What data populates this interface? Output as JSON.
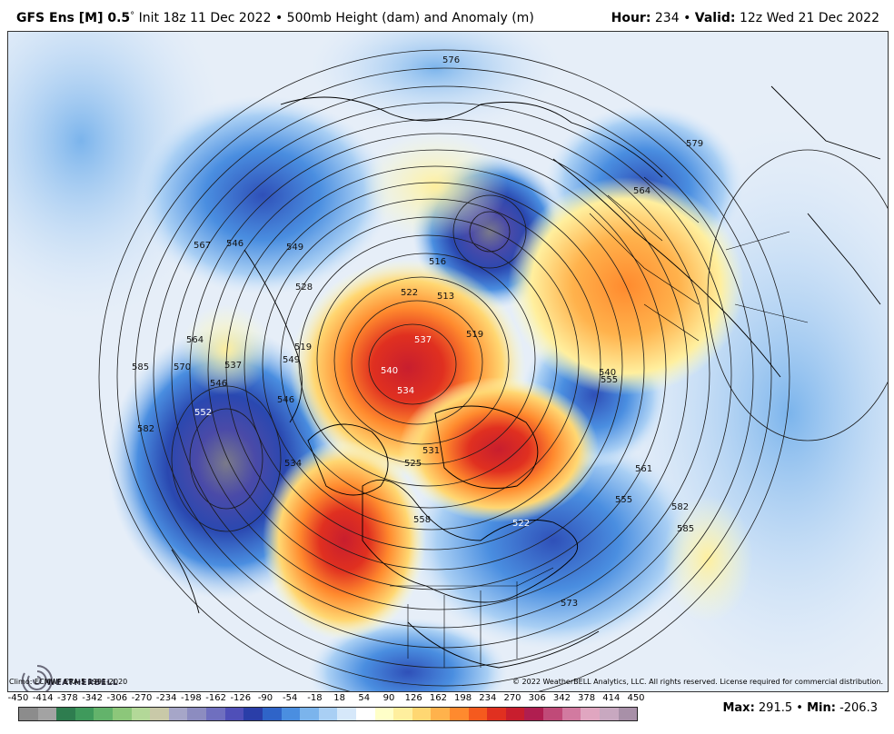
{
  "header": {
    "model": "GFS Ens [M] 0.5",
    "degree_symbol": "°",
    "init": "Init 18z 11 Dec 2022",
    "separator": "•",
    "field": "500mb Height (dam) and Anomaly (m)",
    "hour_label": "Hour:",
    "hour_value": "234",
    "valid_label": "Valid:",
    "valid_value": "12z Wed 21 Dec 2022"
  },
  "footer": {
    "climo": "Climo: ECMWF ERA-5 1991-2020",
    "copyright": "© 2022 WeatherBELL Analytics, LLC. All rights reserved. License required for commercial distribution.",
    "max_label": "Max:",
    "max_value": "291.5",
    "bullet": "•",
    "min_label": "Min:",
    "min_value": "-206.3",
    "logo_text": "WEATHERBELL"
  },
  "colorbar": {
    "labels": [
      "-450",
      "-414",
      "-378",
      "-342",
      "-306",
      "-270",
      "-234",
      "-198",
      "-162",
      "-126",
      "-90",
      "-54",
      "-18",
      "18",
      "54",
      "90",
      "126",
      "162",
      "198",
      "234",
      "270",
      "306",
      "342",
      "378",
      "414",
      "450"
    ],
    "colors": [
      "#8c8c8c",
      "#a3a3a3",
      "#2e7d4f",
      "#3f9a5c",
      "#63b36b",
      "#8cc77a",
      "#b3d898",
      "#c9c9a8",
      "#a6a6c8",
      "#8c8cc0",
      "#6f6fbf",
      "#4f4fb8",
      "#2a3ea8",
      "#2f64c8",
      "#4a8ee0",
      "#7bb4ec",
      "#a9cff4",
      "#d6e8fa",
      "#ffffff",
      "#ffffc8",
      "#ffef9e",
      "#ffd772",
      "#ffb24c",
      "#ff8a2e",
      "#f55a1e",
      "#e03020",
      "#c81e2e",
      "#b01e50",
      "#c04a78",
      "#d27aa0",
      "#e0a6c0",
      "#c8a8c0",
      "#a890a8"
    ]
  },
  "contour_labels": [
    "576",
    "579",
    "564",
    "567",
    "546",
    "549",
    "516",
    "513",
    "522",
    "528",
    "519",
    "537",
    "540",
    "534",
    "552",
    "546",
    "537",
    "585",
    "570",
    "582",
    "564",
    "549",
    "546",
    "534",
    "558",
    "555",
    "522",
    "561",
    "555",
    "582",
    "585",
    "573",
    "540",
    "531",
    "525",
    "519"
  ],
  "colors": {
    "ocean": "#f2f4f8",
    "land_line": "#000000",
    "contour": "#1a1a1a"
  }
}
